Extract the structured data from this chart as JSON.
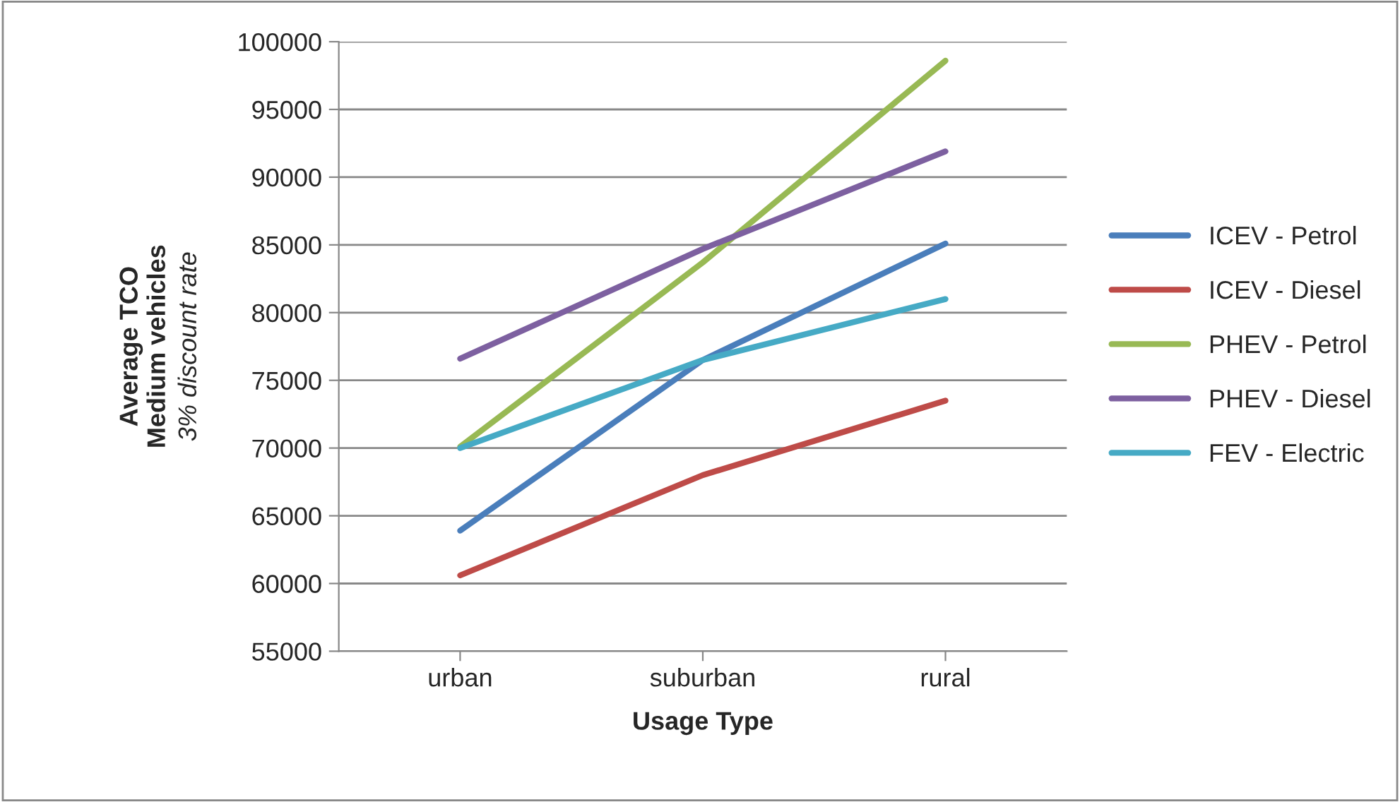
{
  "chart_data": {
    "type": "line",
    "xlabel": "Usage Type",
    "ylabel": "Average TCO\nMedium vehicles",
    "annotations": [
      "3% discount rate"
    ],
    "categories": [
      "urban",
      "suburban",
      "rural"
    ],
    "series": [
      {
        "name": "ICEV - Petrol",
        "color": "#4a7ebb",
        "values": [
          63900,
          76500,
          85100
        ]
      },
      {
        "name": "ICEV - Diesel",
        "color": "#be4b48",
        "values": [
          60600,
          68000,
          73500
        ]
      },
      {
        "name": "PHEV - Petrol",
        "color": "#98b954",
        "values": [
          70100,
          83700,
          98600
        ]
      },
      {
        "name": "PHEV - Diesel",
        "color": "#7d60a0",
        "values": [
          76600,
          84700,
          91900
        ]
      },
      {
        "name": "FEV - Electric",
        "color": "#46aac5",
        "values": [
          70000,
          76500,
          81000
        ]
      }
    ],
    "ylim": [
      55000,
      100000
    ],
    "yticks": [
      55000,
      60000,
      65000,
      70000,
      75000,
      80000,
      85000,
      90000,
      95000,
      100000
    ],
    "grid": "y",
    "legend": "right",
    "marker": "none",
    "line_style": "solid"
  }
}
